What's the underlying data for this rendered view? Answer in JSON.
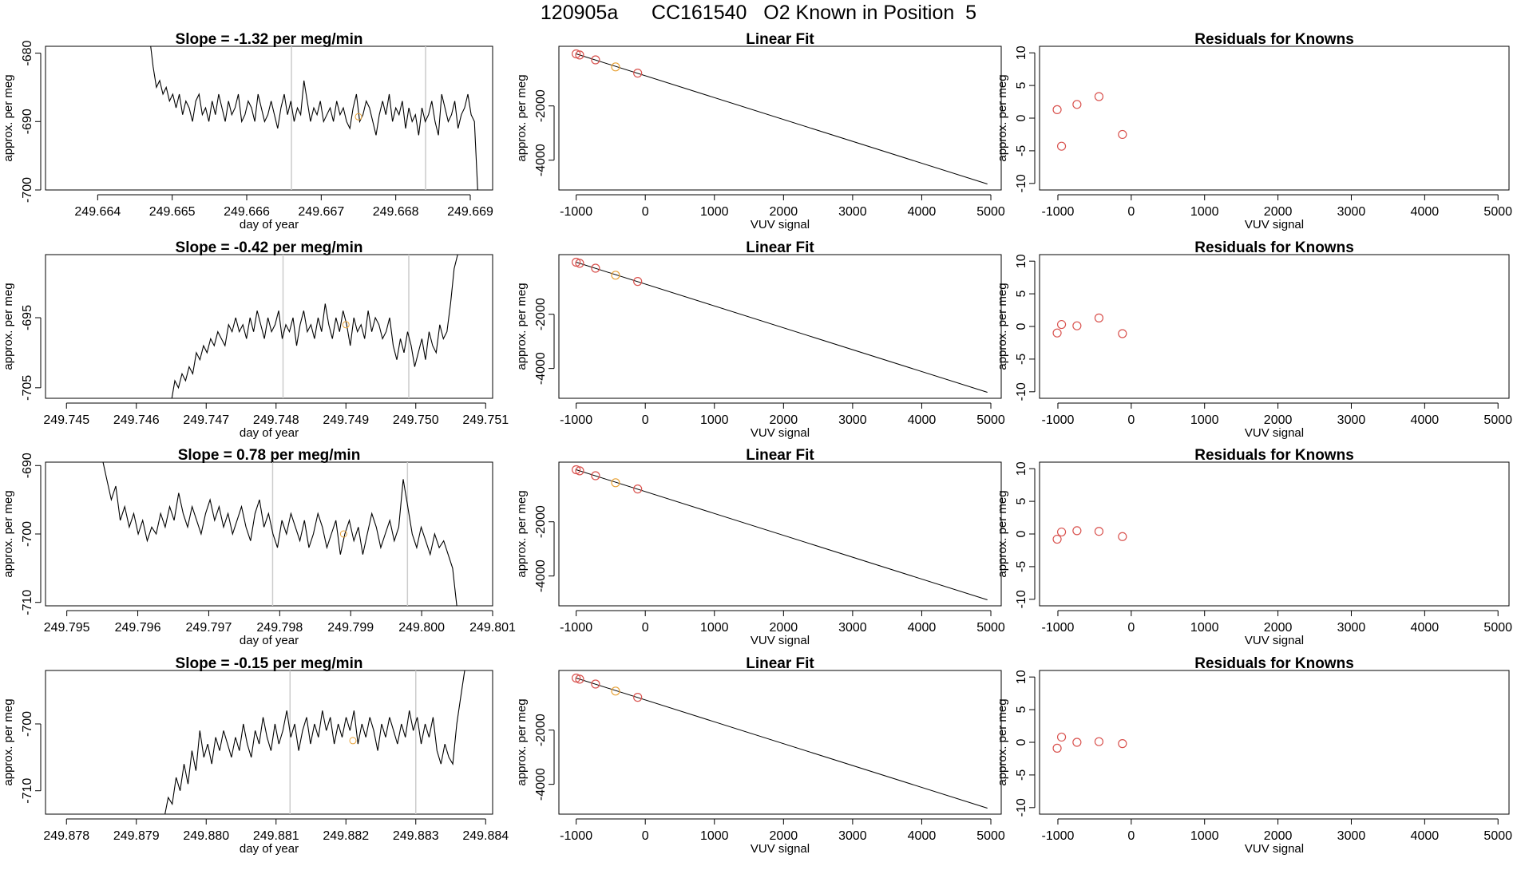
{
  "title": "120905a      CC161540   O2 Known in Position  5",
  "colors": {
    "line": "#000000",
    "gray_line": "#cccccc",
    "known_point": "#e8a33a",
    "residual_point": "#d9534f",
    "fit_point_main": "#d9534f",
    "fit_point_alt": "#e8a33a"
  },
  "chart_data": [
    {
      "type": "line",
      "title": "Slope =  -1.32  per meg/min",
      "xlabel": "day of year",
      "ylabel": "approx. per meg",
      "xlim": [
        249.6633,
        249.6693
      ],
      "ylim": [
        -700,
        -679
      ],
      "xticks": [
        249.664,
        249.665,
        249.666,
        249.667,
        249.668,
        249.669
      ],
      "xtick_labels": [
        "249.664",
        "249.665",
        "249.666",
        "249.667",
        "249.668",
        "249.669"
      ],
      "yticks": [
        -680,
        -690,
        -700
      ],
      "ytick_labels": [
        "-680",
        "-690",
        "-700"
      ],
      "vlines": [
        249.6666,
        249.6684
      ],
      "marker": {
        "x": 249.6675,
        "y": -689.3
      },
      "series_start": 249.6647,
      "series_end": 249.6691,
      "series": [
        -678,
        -682,
        -685,
        -684,
        -686,
        -685,
        -687,
        -686,
        -688,
        -686,
        -689,
        -687,
        -688,
        -690,
        -687,
        -686,
        -689,
        -688,
        -690,
        -687,
        -689,
        -686,
        -688,
        -690,
        -687,
        -689,
        -688,
        -686,
        -690,
        -689,
        -687,
        -688,
        -690,
        -686,
        -688,
        -690,
        -689,
        -687,
        -689,
        -691,
        -688,
        -686,
        -689,
        -687,
        -690,
        -688,
        -689,
        -684,
        -687,
        -690,
        -688,
        -689,
        -687,
        -690,
        -689,
        -688,
        -690,
        -687,
        -689,
        -688,
        -690,
        -691,
        -688,
        -686,
        -690,
        -689,
        -687,
        -688,
        -690,
        -692,
        -689,
        -687,
        -689,
        -686,
        -690,
        -688,
        -689,
        -687,
        -691,
        -688,
        -690,
        -689,
        -692,
        -688,
        -690,
        -689,
        -687,
        -690,
        -692,
        -686,
        -688,
        -690,
        -689,
        -687,
        -691,
        -689,
        -688,
        -686,
        -689,
        -690,
        -700
      ]
    },
    {
      "type": "scatter",
      "title": "Linear Fit",
      "xlabel": "VUV signal",
      "ylabel": "approx. per meg",
      "xlim": [
        -1250,
        5150
      ],
      "ylim": [
        -5100,
        200
      ],
      "xticks": [
        -1000,
        0,
        1000,
        2000,
        3000,
        4000,
        5000
      ],
      "xtick_labels": [
        "-1000",
        "0",
        "1000",
        "2000",
        "3000",
        "4000",
        "5000"
      ],
      "yticks": [
        -2000,
        -4000
      ],
      "ytick_labels": [
        "-2000",
        "-4000"
      ],
      "fit_line": {
        "x": [
          -1000,
          4950
        ],
        "y": [
          -80,
          -4880
        ]
      },
      "points": [
        {
          "x": -1000,
          "y": -80
        },
        {
          "x": -950,
          "y": -120
        },
        {
          "x": -720,
          "y": -300
        },
        {
          "x": -430,
          "y": -560
        },
        {
          "x": -110,
          "y": -790
        }
      ],
      "alt_point_index": 3
    },
    {
      "type": "scatter",
      "title": "Residuals for Knowns",
      "xlabel": "VUV signal",
      "ylabel": "approx. per meg",
      "xlim": [
        -1250,
        5150
      ],
      "ylim": [
        -11,
        11
      ],
      "xticks": [
        -1000,
        0,
        1000,
        2000,
        3000,
        4000,
        5000
      ],
      "xtick_labels": [
        "-1000",
        "0",
        "1000",
        "2000",
        "3000",
        "4000",
        "5000"
      ],
      "yticks": [
        10,
        5,
        0,
        -5,
        -10
      ],
      "ytick_labels": [
        "10",
        "5",
        "0",
        "-5",
        "-10"
      ],
      "points": [
        {
          "x": -1010,
          "y": 1.3
        },
        {
          "x": -950,
          "y": -4.3
        },
        {
          "x": -740,
          "y": 2.1
        },
        {
          "x": -440,
          "y": 3.3
        },
        {
          "x": -120,
          "y": -2.5
        }
      ]
    },
    {
      "type": "line",
      "title": "Slope =  -0.42  per meg/min",
      "xlabel": "day of year",
      "ylabel": "approx. per meg",
      "xlim": [
        249.7447,
        249.7511
      ],
      "ylim": [
        -706.5,
        -686
      ],
      "xticks": [
        249.745,
        249.746,
        249.747,
        249.748,
        249.749,
        249.75,
        249.751
      ],
      "xtick_labels": [
        "249.745",
        "249.746",
        "249.747",
        "249.748",
        "249.749",
        "249.750",
        "249.751"
      ],
      "yticks": [
        -695,
        -705
      ],
      "ytick_labels": [
        "-695",
        "-705"
      ],
      "vlines": [
        249.7481,
        249.7499
      ],
      "marker": {
        "x": 249.749,
        "y": -696
      },
      "series_start": 249.7465,
      "series_end": 249.7506,
      "series": [
        -707,
        -704,
        -705,
        -703,
        -704,
        -702,
        -703,
        -700,
        -701,
        -699,
        -700,
        -698,
        -699,
        -697,
        -698,
        -699,
        -696,
        -697,
        -695,
        -697,
        -696,
        -698,
        -695,
        -697,
        -694,
        -696,
        -698,
        -695,
        -697,
        -696,
        -694,
        -698,
        -696,
        -697,
        -695,
        -699,
        -696,
        -694,
        -697,
        -696,
        -698,
        -695,
        -697,
        -693,
        -696,
        -698,
        -695,
        -697,
        -694,
        -696,
        -699,
        -695,
        -697,
        -696,
        -698,
        -694,
        -697,
        -695,
        -696,
        -698,
        -697,
        -695,
        -699,
        -701,
        -698,
        -700,
        -697,
        -699,
        -702,
        -700,
        -698,
        -701,
        -697,
        -699,
        -700,
        -696,
        -698,
        -697,
        -693,
        -688,
        -686
      ]
    },
    {
      "type": "scatter",
      "title": "Linear Fit",
      "xlabel": "VUV signal",
      "ylabel": "approx. per meg",
      "xlim": [
        -1250,
        5150
      ],
      "ylim": [
        -5100,
        200
      ],
      "xticks": [
        -1000,
        0,
        1000,
        2000,
        3000,
        4000,
        5000
      ],
      "xtick_labels": [
        "-1000",
        "0",
        "1000",
        "2000",
        "3000",
        "4000",
        "5000"
      ],
      "yticks": [
        -2000,
        -4000
      ],
      "ytick_labels": [
        "-2000",
        "-4000"
      ],
      "fit_line": {
        "x": [
          -1000,
          4950
        ],
        "y": [
          -80,
          -4880
        ]
      },
      "points": [
        {
          "x": -1000,
          "y": -80
        },
        {
          "x": -950,
          "y": -120
        },
        {
          "x": -720,
          "y": -300
        },
        {
          "x": -430,
          "y": -560
        },
        {
          "x": -110,
          "y": -790
        }
      ],
      "alt_point_index": 3
    },
    {
      "type": "scatter",
      "title": "Residuals for Knowns",
      "xlabel": "VUV signal",
      "ylabel": "approx. per meg",
      "xlim": [
        -1250,
        5150
      ],
      "ylim": [
        -11,
        11
      ],
      "xticks": [
        -1000,
        0,
        1000,
        2000,
        3000,
        4000,
        5000
      ],
      "xtick_labels": [
        "-1000",
        "0",
        "1000",
        "2000",
        "3000",
        "4000",
        "5000"
      ],
      "yticks": [
        10,
        5,
        0,
        -5,
        -10
      ],
      "ytick_labels": [
        "10",
        "5",
        "0",
        "-5",
        "-10"
      ],
      "points": [
        {
          "x": -1010,
          "y": -1.0
        },
        {
          "x": -950,
          "y": 0.3
        },
        {
          "x": -740,
          "y": 0.1
        },
        {
          "x": -440,
          "y": 1.3
        },
        {
          "x": -120,
          "y": -1.1
        }
      ]
    },
    {
      "type": "line",
      "title": "Slope =  0.78  per meg/min",
      "xlabel": "day of year",
      "ylabel": "approx. per meg",
      "xlim": [
        249.7947,
        249.801
      ],
      "ylim": [
        -710.5,
        -689.5
      ],
      "xticks": [
        249.795,
        249.796,
        249.797,
        249.798,
        249.799,
        249.8,
        249.801
      ],
      "xtick_labels": [
        "249.795",
        "249.796",
        "249.797",
        "249.798",
        "249.799",
        "249.800",
        "249.801"
      ],
      "yticks": [
        -690,
        -700,
        -710
      ],
      "ytick_labels": [
        "-690",
        "-700",
        "-710"
      ],
      "vlines": [
        249.7979,
        249.7998
      ],
      "marker": {
        "x": 249.7989,
        "y": -700
      },
      "series_start": 249.7955,
      "series_end": 249.8005,
      "series": [
        -689,
        -692,
        -695,
        -693,
        -698,
        -696,
        -699,
        -697,
        -700,
        -698,
        -701,
        -699,
        -700,
        -697,
        -699,
        -696,
        -698,
        -694,
        -697,
        -699,
        -696,
        -698,
        -700,
        -697,
        -695,
        -698,
        -696,
        -699,
        -697,
        -700,
        -698,
        -696,
        -699,
        -701,
        -697,
        -695,
        -699,
        -697,
        -700,
        -702,
        -698,
        -700,
        -697,
        -699,
        -701,
        -698,
        -702,
        -700,
        -697,
        -699,
        -702,
        -700,
        -698,
        -703,
        -700,
        -698,
        -701,
        -699,
        -703,
        -700,
        -697,
        -699,
        -702,
        -700,
        -698,
        -701,
        -699,
        -692,
        -696,
        -700,
        -702,
        -699,
        -701,
        -703,
        -700,
        -702,
        -701,
        -703,
        -705,
        -711
      ]
    },
    {
      "type": "scatter",
      "title": "Linear Fit",
      "xlabel": "VUV signal",
      "ylabel": "approx. per meg",
      "xlim": [
        -1250,
        5150
      ],
      "ylim": [
        -5100,
        200
      ],
      "xticks": [
        -1000,
        0,
        1000,
        2000,
        3000,
        4000,
        5000
      ],
      "xtick_labels": [
        "-1000",
        "0",
        "1000",
        "2000",
        "3000",
        "4000",
        "5000"
      ],
      "yticks": [
        -2000,
        -4000
      ],
      "ytick_labels": [
        "-2000",
        "-4000"
      ],
      "fit_line": {
        "x": [
          -1000,
          4950
        ],
        "y": [
          -80,
          -4880
        ]
      },
      "points": [
        {
          "x": -1000,
          "y": -80
        },
        {
          "x": -950,
          "y": -120
        },
        {
          "x": -720,
          "y": -300
        },
        {
          "x": -430,
          "y": -560
        },
        {
          "x": -110,
          "y": -790
        }
      ],
      "alt_point_index": 3
    },
    {
      "type": "scatter",
      "title": "Residuals for Knowns",
      "xlabel": "VUV signal",
      "ylabel": "approx. per meg",
      "xlim": [
        -1250,
        5150
      ],
      "ylim": [
        -11,
        11
      ],
      "xticks": [
        -1000,
        0,
        1000,
        2000,
        3000,
        4000,
        5000
      ],
      "xtick_labels": [
        "-1000",
        "0",
        "1000",
        "2000",
        "3000",
        "4000",
        "5000"
      ],
      "yticks": [
        10,
        5,
        0,
        -5,
        -10
      ],
      "ytick_labels": [
        "10",
        "5",
        "0",
        "-5",
        "-10"
      ],
      "points": [
        {
          "x": -1010,
          "y": -0.8
        },
        {
          "x": -950,
          "y": 0.3
        },
        {
          "x": -740,
          "y": 0.5
        },
        {
          "x": -440,
          "y": 0.4
        },
        {
          "x": -120,
          "y": -0.4
        }
      ]
    },
    {
      "type": "line",
      "title": "Slope =  -0.15  per meg/min",
      "xlabel": "day of year",
      "ylabel": "approx. per meg",
      "xlim": [
        249.8777,
        249.8841
      ],
      "ylim": [
        -713.5,
        -692
      ],
      "xticks": [
        249.878,
        249.879,
        249.88,
        249.881,
        249.882,
        249.883,
        249.884
      ],
      "xtick_labels": [
        "249.878",
        "249.879",
        "249.880",
        "249.881",
        "249.882",
        "249.883",
        "249.884"
      ],
      "yticks": [
        -700,
        -710
      ],
      "ytick_labels": [
        "-700",
        "-710"
      ],
      "vlines": [
        249.8812,
        249.883
      ],
      "marker": {
        "x": 249.8821,
        "y": -702.5
      },
      "series_start": 249.8794,
      "series_end": 249.8837,
      "series": [
        -714,
        -711,
        -712,
        -708,
        -710,
        -706,
        -709,
        -704,
        -707,
        -701,
        -705,
        -703,
        -706,
        -702,
        -704,
        -701,
        -703,
        -705,
        -702,
        -704,
        -700,
        -703,
        -705,
        -701,
        -703,
        -699,
        -702,
        -704,
        -700,
        -703,
        -701,
        -698,
        -702,
        -700,
        -704,
        -701,
        -699,
        -703,
        -700,
        -702,
        -698,
        -701,
        -699,
        -703,
        -700,
        -702,
        -699,
        -701,
        -698,
        -703,
        -700,
        -702,
        -699,
        -701,
        -704,
        -700,
        -702,
        -699,
        -701,
        -703,
        -700,
        -702,
        -698,
        -701,
        -699,
        -703,
        -700,
        -702,
        -699,
        -704,
        -706,
        -703,
        -705,
        -706,
        -700,
        -696,
        -692
      ]
    },
    {
      "type": "scatter",
      "title": "Linear Fit",
      "xlabel": "VUV signal",
      "ylabel": "approx. per meg",
      "xlim": [
        -1250,
        5150
      ],
      "ylim": [
        -5100,
        200
      ],
      "xticks": [
        -1000,
        0,
        1000,
        2000,
        3000,
        4000,
        5000
      ],
      "xtick_labels": [
        "-1000",
        "0",
        "1000",
        "2000",
        "3000",
        "4000",
        "5000"
      ],
      "yticks": [
        -2000,
        -4000
      ],
      "ytick_labels": [
        "-2000",
        "-4000"
      ],
      "fit_line": {
        "x": [
          -1000,
          4950
        ],
        "y": [
          -80,
          -4880
        ]
      },
      "points": [
        {
          "x": -1000,
          "y": -80
        },
        {
          "x": -950,
          "y": -120
        },
        {
          "x": -720,
          "y": -300
        },
        {
          "x": -430,
          "y": -560
        },
        {
          "x": -110,
          "y": -790
        }
      ],
      "alt_point_index": 3
    },
    {
      "type": "scatter",
      "title": "Residuals for Knowns",
      "xlabel": "VUV signal",
      "ylabel": "approx. per meg",
      "xlim": [
        -1250,
        5150
      ],
      "ylim": [
        -11,
        11
      ],
      "xticks": [
        -1000,
        0,
        1000,
        2000,
        3000,
        4000,
        5000
      ],
      "xtick_labels": [
        "-1000",
        "0",
        "1000",
        "2000",
        "3000",
        "4000",
        "5000"
      ],
      "yticks": [
        10,
        5,
        0,
        -5,
        -10
      ],
      "ytick_labels": [
        "10",
        "5",
        "0",
        "-5",
        "-10"
      ],
      "points": [
        {
          "x": -1010,
          "y": -0.9
        },
        {
          "x": -950,
          "y": 0.8
        },
        {
          "x": -740,
          "y": 0.0
        },
        {
          "x": -440,
          "y": 0.1
        },
        {
          "x": -120,
          "y": -0.2
        }
      ]
    }
  ]
}
